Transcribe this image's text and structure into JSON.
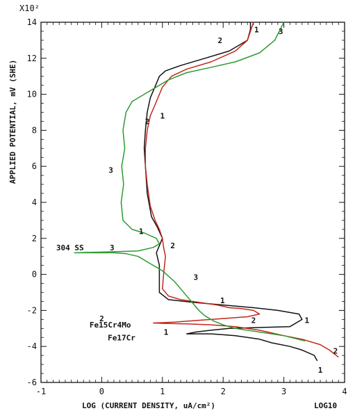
{
  "chart_data": {
    "type": "line",
    "xlabel": "LOG (CURRENT DENSITY, uA/cm²)",
    "ylabel": "APPLIED POTENTIAL, mV (SHE)",
    "y_multiplier": "X10²",
    "figure_code": "LOG10",
    "xlim": [
      -1,
      4
    ],
    "ylim": [
      -6,
      14
    ],
    "x_ticks": [
      "-1",
      "0",
      "1",
      "2",
      "3",
      "4"
    ],
    "y_ticks": [
      "-6",
      "-4",
      "-2",
      "0",
      "2",
      "4",
      "6",
      "8",
      "10",
      "12",
      "14"
    ],
    "grid": false,
    "series": [
      {
        "id": "1",
        "color": "#111111",
        "x": [
          3.55,
          3.5,
          3.3,
          3.1,
          2.8,
          2.6,
          2.4,
          2.2,
          2.0,
          1.8,
          1.6,
          1.5,
          1.4,
          1.55,
          1.8,
          2.1,
          2.6,
          3.1,
          3.3,
          3.25,
          2.9,
          2.5,
          2.0,
          1.5,
          1.1,
          0.95,
          0.95,
          0.9,
          0.95,
          1.0,
          0.92,
          0.82,
          0.75,
          0.72,
          0.7,
          0.72,
          0.75,
          0.8,
          0.9,
          0.95,
          1.05,
          1.3,
          1.7,
          2.1,
          2.4,
          2.45,
          2.45
        ],
        "y": [
          -4.8,
          -4.5,
          -4.2,
          -4.0,
          -3.8,
          -3.6,
          -3.5,
          -3.4,
          -3.35,
          -3.3,
          -3.3,
          -3.3,
          -3.3,
          -3.2,
          -3.1,
          -3.0,
          -2.95,
          -2.9,
          -2.5,
          -2.2,
          -2.0,
          -1.85,
          -1.7,
          -1.55,
          -1.4,
          -1.0,
          0.5,
          1.2,
          1.6,
          2.0,
          2.6,
          3.2,
          4.5,
          6.0,
          7.0,
          8.0,
          9.0,
          9.8,
          10.6,
          11.0,
          11.3,
          11.6,
          12.0,
          12.4,
          13.0,
          13.6,
          14.0
        ]
      },
      {
        "id": "2",
        "color": "#c0281c",
        "x": [
          3.9,
          3.75,
          3.6,
          3.3,
          3.0,
          2.6,
          2.2,
          1.8,
          1.4,
          1.0,
          0.85,
          1.2,
          1.6,
          2.0,
          2.4,
          2.6,
          2.5,
          2.3,
          2.1,
          1.9,
          1.6,
          1.3,
          1.1,
          1.0,
          1.02,
          1.05,
          1.02,
          1.0,
          0.95,
          0.88,
          0.8,
          0.75,
          0.72,
          0.72,
          0.75,
          0.8,
          0.9,
          1.0,
          1.15,
          1.4,
          1.8,
          2.2,
          2.4,
          2.5
        ],
        "y": [
          -4.6,
          -4.2,
          -3.9,
          -3.6,
          -3.4,
          -3.1,
          -2.9,
          -2.8,
          -2.75,
          -2.72,
          -2.7,
          -2.65,
          -2.55,
          -2.45,
          -2.35,
          -2.2,
          -2.0,
          -1.9,
          -1.85,
          -1.7,
          -1.55,
          -1.4,
          -1.2,
          -0.8,
          0.0,
          1.0,
          1.5,
          2.0,
          2.5,
          3.0,
          3.8,
          5.0,
          6.0,
          7.0,
          8.0,
          8.8,
          9.6,
          10.4,
          11.0,
          11.4,
          11.8,
          12.4,
          13.0,
          14.0
        ]
      },
      {
        "id": "3",
        "color": "#2c9a30",
        "x": [
          3.35,
          3.0,
          2.6,
          2.2,
          2.0,
          1.85,
          1.7,
          1.6,
          1.5,
          1.4,
          1.3,
          1.2,
          1.0,
          0.8,
          0.6,
          0.4,
          0.2,
          -0.1,
          -0.45,
          0.1,
          0.6,
          0.85,
          0.95,
          0.9,
          0.7,
          0.5,
          0.35,
          0.32,
          0.36,
          0.33,
          0.38,
          0.35,
          0.4,
          0.5,
          0.7,
          0.9,
          1.1,
          1.4,
          1.8,
          2.2,
          2.6,
          2.85,
          3.0
        ],
        "y": [
          -3.7,
          -3.4,
          -3.2,
          -3.0,
          -2.8,
          -2.6,
          -2.3,
          -2.0,
          -1.6,
          -1.2,
          -0.8,
          -0.4,
          0.2,
          0.6,
          1.0,
          1.15,
          1.2,
          1.2,
          1.2,
          1.25,
          1.3,
          1.5,
          1.7,
          2.0,
          2.3,
          2.5,
          3.0,
          4.0,
          5.0,
          6.0,
          7.0,
          8.0,
          9.0,
          9.6,
          10.0,
          10.4,
          10.8,
          11.2,
          11.5,
          11.8,
          12.3,
          13.0,
          14.0
        ]
      }
    ],
    "curve_labels": [
      {
        "text": "1",
        "x": 2.55,
        "y": 13.6
      },
      {
        "text": "2",
        "x": 1.95,
        "y": 13.0
      },
      {
        "text": "3",
        "x": 2.95,
        "y": 13.5
      },
      {
        "text": "1",
        "x": 1.0,
        "y": 8.8
      },
      {
        "text": "2",
        "x": 0.75,
        "y": 8.5
      },
      {
        "text": "3",
        "x": 0.15,
        "y": 5.8
      },
      {
        "text": "1",
        "x": 0.65,
        "y": 2.4
      },
      {
        "text": "2",
        "x": 1.17,
        "y": 1.6
      },
      {
        "text": "3",
        "x": 0.17,
        "y": 1.5
      },
      {
        "text": "3",
        "x": 1.55,
        "y": -0.15
      },
      {
        "text": "1",
        "x": 1.99,
        "y": -1.45
      },
      {
        "text": "1",
        "x": 3.38,
        "y": -2.55
      },
      {
        "text": "2",
        "x": 2.5,
        "y": -2.55
      },
      {
        "text": "2",
        "x": 0.0,
        "y": -2.45
      },
      {
        "text": "1",
        "x": 1.06,
        "y": -3.2
      },
      {
        "text": "2",
        "x": 3.85,
        "y": -4.25
      },
      {
        "text": "1",
        "x": 3.6,
        "y": -5.3
      }
    ],
    "annotations": [
      {
        "text": "304 SS",
        "x": -0.75,
        "y": 1.5
      },
      {
        "text": "Fe15Cr4Mo",
        "x": -0.2,
        "y": -2.8
      },
      {
        "text": "Fe17Cr",
        "x": 0.1,
        "y": -3.5
      }
    ]
  }
}
